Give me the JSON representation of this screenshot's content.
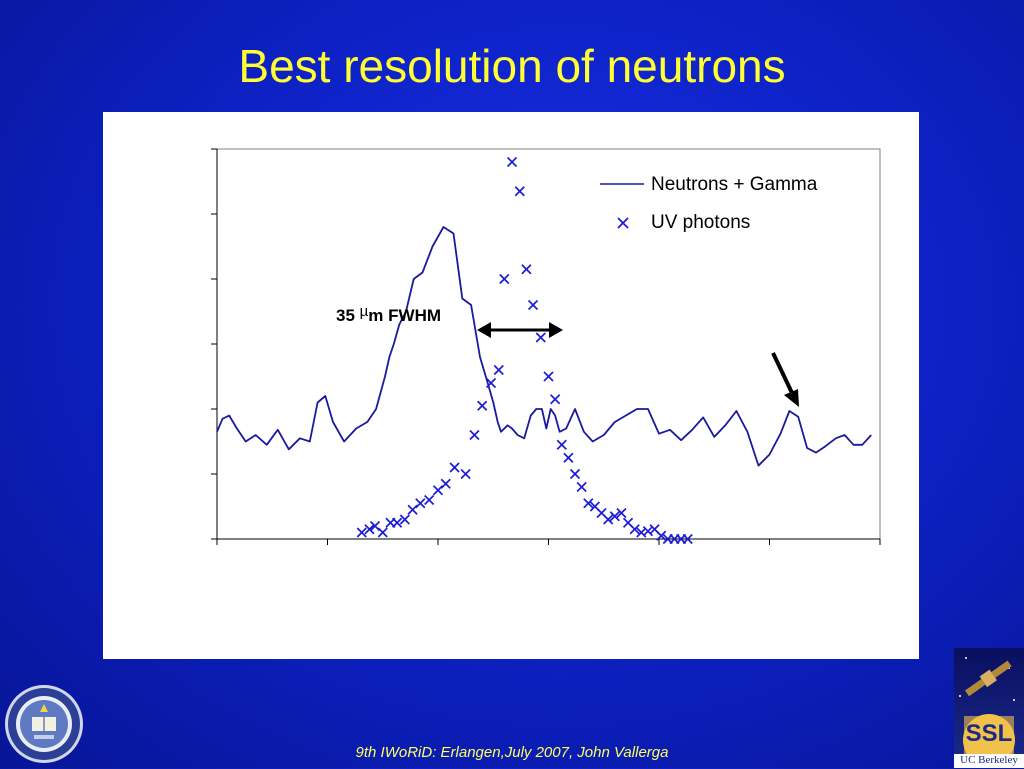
{
  "title": "Best resolution of neutrons",
  "footer": "9th IWoRiD: Erlangen,July 2007, John Vallerga",
  "logo_right": {
    "line1": "SSL",
    "line2": "UC Berkeley"
  },
  "annotation": {
    "fwhm_number": "35 ",
    "fwhm_mu": "µ",
    "fwhm_rest": "m FWHM"
  },
  "colors": {
    "background": "#0e22c8",
    "title": "#ffff33",
    "series": "#1a1a9e",
    "marker": "#1c1cd6"
  },
  "chart_data": {
    "type": "line",
    "title": "",
    "xlabel": "",
    "ylabel": "",
    "tick_labels_shown": false,
    "xlim": [
      0,
      6
    ],
    "ylim": [
      0,
      6
    ],
    "grid": false,
    "legend_position": "top-right",
    "series": [
      {
        "name": "Neutrons + Gamma",
        "style": "line",
        "x": [
          0,
          0.05,
          0.11,
          0.18,
          0.26,
          0.35,
          0.45,
          0.55,
          0.65,
          0.75,
          0.84,
          0.91,
          0.98,
          1.05,
          1.15,
          1.26,
          1.36,
          1.44,
          1.52,
          1.56,
          1.6,
          1.65,
          1.71,
          1.78,
          1.86,
          1.95,
          2.05,
          2.14,
          2.22,
          2.3,
          2.38,
          2.45,
          2.5,
          2.54,
          2.57,
          2.6,
          2.63,
          2.67,
          2.72,
          2.78,
          2.84,
          2.89,
          2.94,
          2.98,
          3.02,
          3.06,
          3.1,
          3.16,
          3.24,
          3.32,
          3.4,
          3.5,
          3.6,
          3.7,
          3.8,
          3.9,
          4.0,
          4.1,
          4.2,
          4.3,
          4.4,
          4.5,
          4.6,
          4.7,
          4.8,
          4.9,
          5.0,
          5.1,
          5.18,
          5.26,
          5.34,
          5.42,
          5.5,
          5.6,
          5.68,
          5.76,
          5.84,
          5.92
        ],
        "y": [
          1.65,
          1.85,
          1.9,
          1.7,
          1.5,
          1.6,
          1.45,
          1.68,
          1.38,
          1.55,
          1.5,
          2.1,
          2.2,
          1.8,
          1.5,
          1.7,
          1.8,
          2.0,
          2.5,
          2.8,
          3.0,
          3.3,
          3.5,
          4.0,
          4.1,
          4.5,
          4.8,
          4.7,
          3.7,
          3.6,
          2.8,
          2.4,
          2.1,
          1.8,
          1.65,
          1.7,
          1.75,
          1.7,
          1.6,
          1.55,
          1.9,
          2.0,
          2.0,
          1.7,
          2.0,
          1.9,
          1.65,
          1.7,
          2.0,
          1.65,
          1.5,
          1.6,
          1.8,
          1.9,
          2.0,
          2.0,
          1.62,
          1.68,
          1.52,
          1.68,
          1.87,
          1.57,
          1.75,
          1.97,
          1.65,
          1.13,
          1.3,
          1.62,
          1.97,
          1.88,
          1.4,
          1.33,
          1.42,
          1.55,
          1.6,
          1.45,
          1.45,
          1.6
        ]
      },
      {
        "name": "UV photons",
        "style": "scatter",
        "x": [
          1.31,
          1.38,
          1.43,
          1.5,
          1.57,
          1.63,
          1.7,
          1.77,
          1.84,
          1.92,
          2.0,
          2.07,
          2.15,
          2.25,
          2.33,
          2.4,
          2.48,
          2.55,
          2.6,
          2.67,
          2.74,
          2.8,
          2.86,
          2.93,
          3.0,
          3.06,
          3.12,
          3.18,
          3.24,
          3.3,
          3.36,
          3.42,
          3.48,
          3.54,
          3.6,
          3.66,
          3.72,
          3.78,
          3.84,
          3.9,
          3.96,
          4.02,
          4.08,
          4.14,
          4.2,
          4.26
        ],
        "y": [
          0.1,
          0.15,
          0.2,
          0.1,
          0.25,
          0.25,
          0.3,
          0.45,
          0.55,
          0.6,
          0.75,
          0.85,
          1.1,
          1.0,
          1.6,
          2.05,
          2.4,
          2.6,
          4.0,
          5.8,
          5.35,
          4.15,
          3.6,
          3.1,
          2.5,
          2.15,
          1.45,
          1.25,
          1.0,
          0.8,
          0.55,
          0.5,
          0.4,
          0.3,
          0.35,
          0.4,
          0.25,
          0.15,
          0.1,
          0.12,
          0.15,
          0.05,
          0.0,
          0.0,
          0.0,
          0.0
        ]
      }
    ]
  }
}
